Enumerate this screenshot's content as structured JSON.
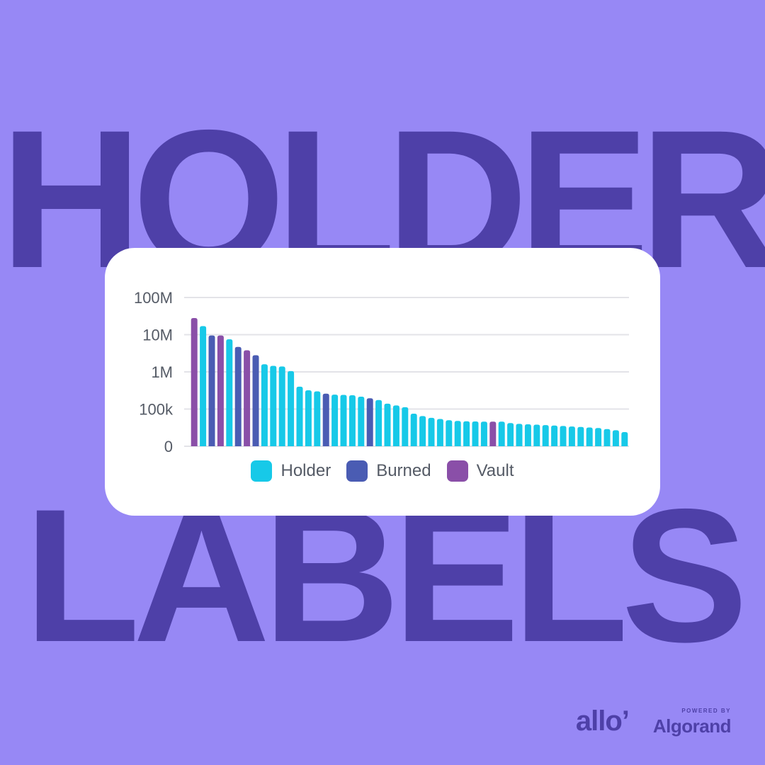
{
  "headline": {
    "top": "HOLDER",
    "bottom": "LABELS"
  },
  "footer": {
    "brand": "allo’",
    "powered_by": "POWERED BY",
    "partner": "Algorand"
  },
  "colors": {
    "background": "#9788f5",
    "headline": "#4e40a8",
    "Holder": "#17c9e8",
    "Burned": "#4a5cb3",
    "Vault": "#8a4fa8"
  },
  "chart_data": {
    "type": "bar",
    "y_scale": "log",
    "y_ticks": [
      "100M",
      "10M",
      "1M",
      "100k",
      "0"
    ],
    "grid": true,
    "legend_position": "bottom-center",
    "legend": [
      "Holder",
      "Burned",
      "Vault"
    ],
    "bars": [
      {
        "value": 28000000,
        "label": "Vault"
      },
      {
        "value": 17000000,
        "label": "Holder"
      },
      {
        "value": 9500000,
        "label": "Burned"
      },
      {
        "value": 9500000,
        "label": "Vault"
      },
      {
        "value": 7500000,
        "label": "Holder"
      },
      {
        "value": 4700000,
        "label": "Burned"
      },
      {
        "value": 3800000,
        "label": "Vault"
      },
      {
        "value": 2800000,
        "label": "Burned"
      },
      {
        "value": 1600000,
        "label": "Holder"
      },
      {
        "value": 1450000,
        "label": "Holder"
      },
      {
        "value": 1400000,
        "label": "Holder"
      },
      {
        "value": 1050000,
        "label": "Holder"
      },
      {
        "value": 400000,
        "label": "Holder"
      },
      {
        "value": 320000,
        "label": "Holder"
      },
      {
        "value": 300000,
        "label": "Holder"
      },
      {
        "value": 260000,
        "label": "Burned"
      },
      {
        "value": 245000,
        "label": "Holder"
      },
      {
        "value": 240000,
        "label": "Holder"
      },
      {
        "value": 235000,
        "label": "Holder"
      },
      {
        "value": 215000,
        "label": "Holder"
      },
      {
        "value": 195000,
        "label": "Burned"
      },
      {
        "value": 175000,
        "label": "Holder"
      },
      {
        "value": 140000,
        "label": "Holder"
      },
      {
        "value": 125000,
        "label": "Holder"
      },
      {
        "value": 112000,
        "label": "Holder"
      },
      {
        "value": 75000,
        "label": "Holder"
      },
      {
        "value": 65000,
        "label": "Holder"
      },
      {
        "value": 58000,
        "label": "Holder"
      },
      {
        "value": 54000,
        "label": "Holder"
      },
      {
        "value": 50000,
        "label": "Holder"
      },
      {
        "value": 48000,
        "label": "Holder"
      },
      {
        "value": 47000,
        "label": "Holder"
      },
      {
        "value": 46500,
        "label": "Holder"
      },
      {
        "value": 46000,
        "label": "Holder"
      },
      {
        "value": 46000,
        "label": "Vault"
      },
      {
        "value": 46000,
        "label": "Holder"
      },
      {
        "value": 42000,
        "label": "Holder"
      },
      {
        "value": 40000,
        "label": "Holder"
      },
      {
        "value": 39000,
        "label": "Holder"
      },
      {
        "value": 38000,
        "label": "Holder"
      },
      {
        "value": 37000,
        "label": "Holder"
      },
      {
        "value": 36000,
        "label": "Holder"
      },
      {
        "value": 35000,
        "label": "Holder"
      },
      {
        "value": 34000,
        "label": "Holder"
      },
      {
        "value": 33000,
        "label": "Holder"
      },
      {
        "value": 32000,
        "label": "Holder"
      },
      {
        "value": 31000,
        "label": "Holder"
      },
      {
        "value": 29000,
        "label": "Holder"
      },
      {
        "value": 27000,
        "label": "Holder"
      },
      {
        "value": 24000,
        "label": "Holder"
      }
    ]
  }
}
